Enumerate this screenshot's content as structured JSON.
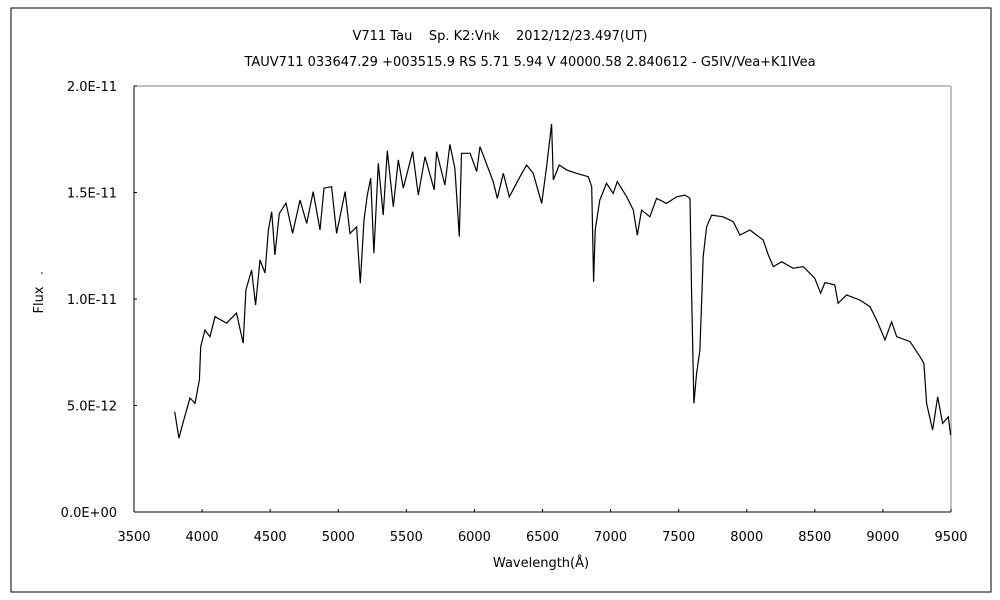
{
  "chart_data": {
    "type": "line",
    "title": "V711 Tau    Sp. K2:Vnk    2012/12/23.497(UT)",
    "subtitle": "TAUV711 033647.29 +003515.9 RS 5.71 5.94 V 40000.58 2.840612 - G5IV/Vea+K1IVea",
    "xlabel": "Wavelength(Å)",
    "ylabel": "Flux",
    "xlim": [
      3500,
      9500
    ],
    "ylim": [
      0,
      2e-11
    ],
    "grid": false,
    "x_ticks": [
      3500,
      4000,
      4500,
      5000,
      5500,
      6000,
      6500,
      7000,
      7500,
      8000,
      8500,
      9000,
      9500
    ],
    "x_tick_labels": [
      "3500",
      "4000",
      "4500",
      "5000",
      "5500",
      "6000",
      "6500",
      "7000",
      "7500",
      "8000",
      "8500",
      "9000",
      "9500"
    ],
    "y_ticks": [
      0,
      5e-12,
      1e-11,
      1.5e-11,
      2e-11
    ],
    "y_tick_labels": [
      "0.0E+00",
      "5.0E-12",
      "1.0E-11",
      "1.5E-11",
      "2.0E-11"
    ],
    "series": [
      {
        "name": "V711 Tau spectrum",
        "y_unit_multiplier": 1e-12,
        "x": [
          3799,
          3830,
          3862,
          3911,
          3948,
          3980,
          3990,
          4021,
          4058,
          4095,
          4180,
          4253,
          4302,
          4322,
          4364,
          4393,
          4425,
          4462,
          4487,
          4511,
          4535,
          4567,
          4616,
          4665,
          4719,
          4768,
          4816,
          4866,
          4895,
          4951,
          4988,
          5050,
          5086,
          5135,
          5162,
          5189,
          5213,
          5238,
          5262,
          5294,
          5330,
          5360,
          5404,
          5441,
          5478,
          5546,
          5588,
          5637,
          5705,
          5722,
          5783,
          5820,
          5857,
          5889,
          5905,
          5968,
          6017,
          6041,
          6138,
          6168,
          6212,
          6256,
          6335,
          6383,
          6432,
          6494,
          6530,
          6567,
          6579,
          6623,
          6677,
          6750,
          6836,
          6861,
          6875,
          6887,
          6921,
          6970,
          7019,
          7049,
          7118,
          7167,
          7196,
          7228,
          7289,
          7338,
          7411,
          7485,
          7546,
          7583,
          7595,
          7612,
          7632,
          7656,
          7680,
          7705,
          7742,
          7827,
          7901,
          7950,
          8023,
          8121,
          8158,
          8195,
          8256,
          8341,
          8415,
          8500,
          8542,
          8574,
          8647,
          8671,
          8733,
          8832,
          8905,
          8954,
          9015,
          9064,
          9101,
          9199,
          9272,
          9301,
          9321,
          9365,
          9402,
          9438,
          9480,
          9497
        ],
        "y": [
          4.71,
          3.47,
          4.24,
          5.35,
          5.1,
          6.2,
          7.76,
          8.54,
          8.23,
          9.17,
          8.87,
          9.34,
          7.93,
          10.42,
          11.36,
          9.72,
          11.83,
          11.22,
          13.24,
          14.1,
          12.07,
          14.02,
          14.5,
          13.08,
          14.65,
          13.55,
          15.04,
          13.24,
          15.2,
          15.27,
          13.08,
          15.04,
          13.08,
          13.39,
          10.74,
          13.71,
          14.88,
          15.67,
          12.15,
          16.37,
          13.94,
          16.96,
          14.33,
          16.53,
          15.2,
          16.92,
          14.88,
          16.68,
          15.12,
          16.92,
          15.35,
          17.26,
          16.13,
          12.93,
          16.84,
          16.84,
          15.98,
          17.15,
          15.51,
          14.73,
          15.9,
          14.8,
          15.74,
          16.29,
          15.9,
          14.49,
          16.21,
          18.22,
          15.59,
          16.29,
          16.06,
          15.9,
          15.74,
          15.27,
          10.81,
          13.24,
          14.65,
          15.43,
          14.96,
          15.51,
          14.8,
          14.18,
          13.0,
          14.18,
          13.86,
          14.73,
          14.49,
          14.8,
          14.88,
          14.73,
          10.27,
          5.1,
          6.51,
          7.6,
          11.99,
          13.39,
          13.94,
          13.86,
          13.63,
          13.0,
          13.24,
          12.77,
          12.07,
          11.52,
          11.75,
          11.44,
          11.52,
          10.97,
          10.27,
          10.77,
          10.66,
          9.8,
          10.19,
          9.95,
          9.64,
          9.01,
          8.08,
          8.93,
          8.23,
          8.0,
          7.29,
          6.98,
          5.1,
          3.85,
          5.41,
          4.16,
          4.47,
          3.62
        ]
      }
    ],
    "colors": {
      "line": "#000000",
      "frame_top_right": "#808080"
    }
  }
}
